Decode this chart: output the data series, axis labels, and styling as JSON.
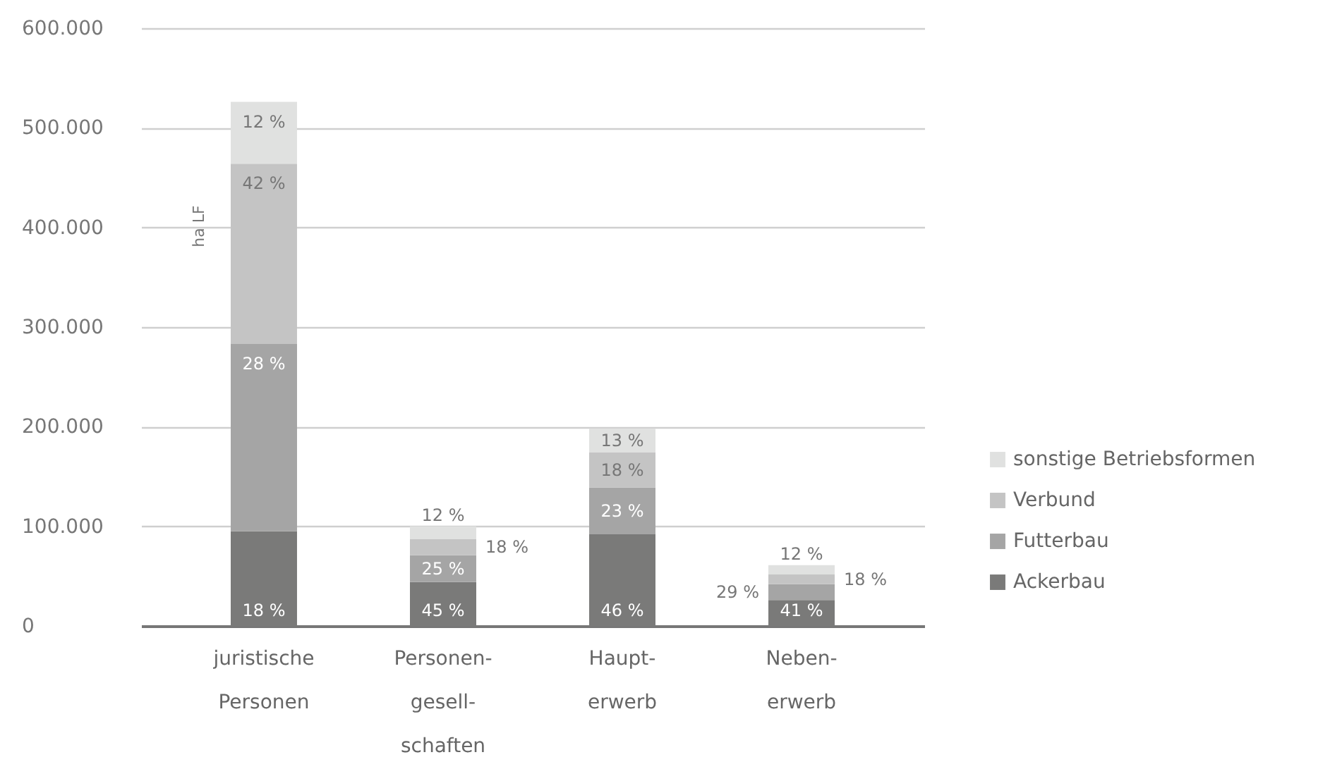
{
  "chart_data": {
    "type": "bar",
    "stacked": true,
    "ylabel": "ha LF",
    "categories": [
      "juristische\nPersonen",
      "Personen-\ngesell-\nschaften",
      "Haupt-\nerwerb",
      "Neben-\nerwerb"
    ],
    "series": [
      {
        "name": "Ackerbau",
        "color": "#7a7a79",
        "values": [
          95000,
          44000,
          92000,
          26000
        ]
      },
      {
        "name": "Futterbau",
        "color": "#a5a5a5",
        "values": [
          188000,
          27000,
          47000,
          16000
        ]
      },
      {
        "name": "Verbund",
        "color": "#c4c4c4",
        "values": [
          181000,
          16000,
          35000,
          10000
        ]
      },
      {
        "name": "sonstige Betriebsformen",
        "color": "#e0e1e0",
        "values": [
          62000,
          13000,
          24000,
          9000
        ]
      }
    ],
    "annotations": [
      {
        "text": "18 %",
        "x": "juristische\nPersonen",
        "y": 0
      },
      {
        "text": "28 %",
        "x": "juristische\nPersonen",
        "y": 283000
      },
      {
        "text": "42 %",
        "x": "juristische\nPersonen",
        "y": 464000
      },
      {
        "text": "12 %",
        "x": "juristische\nPersonen",
        "y": 526000
      },
      {
        "text": "45 %",
        "x": "Personen-\ngesell-\nschaften",
        "y": 0
      },
      {
        "text": "25 %",
        "x": "Personen-\ngesell-\nschaften",
        "y": 71000
      },
      {
        "text": "18 %",
        "x": "Personen-\ngesell-\nschaften",
        "y": 87000
      },
      {
        "text": "12 %",
        "x": "Personen-\ngesell-\nschaften",
        "y": 100000
      },
      {
        "text": "46 %",
        "x": "Haupt-\nerwerb",
        "y": 0
      },
      {
        "text": "23 %",
        "x": "Haupt-\nerwerb",
        "y": 139000
      },
      {
        "text": "18 %",
        "x": "Haupt-\nerwerb",
        "y": 174000
      },
      {
        "text": "13 %",
        "x": "Haupt-\nerwerb",
        "y": 198000
      },
      {
        "text": "41 %",
        "x": "Neben-\nerwerb",
        "y": 0
      },
      {
        "text": "29 %",
        "x": "Neben-\nerwerb",
        "y": 42000
      },
      {
        "text": "18 %",
        "x": "Neben-\nerwerb",
        "y": 52000
      },
      {
        "text": "12 %",
        "x": "Neben-\nerwerb",
        "y": 61000
      }
    ],
    "ylim": [
      0,
      600000
    ],
    "yticks": [
      {
        "value": 0,
        "label": "0"
      },
      {
        "value": 100000,
        "label": "100.000"
      },
      {
        "value": 200000,
        "label": "200.000"
      },
      {
        "value": 300000,
        "label": "300.000"
      },
      {
        "value": 400000,
        "label": "400.000"
      },
      {
        "value": 500000,
        "label": "500.000"
      },
      {
        "value": 600000,
        "label": "600.000"
      }
    ],
    "grid": "y",
    "legend": "right"
  }
}
